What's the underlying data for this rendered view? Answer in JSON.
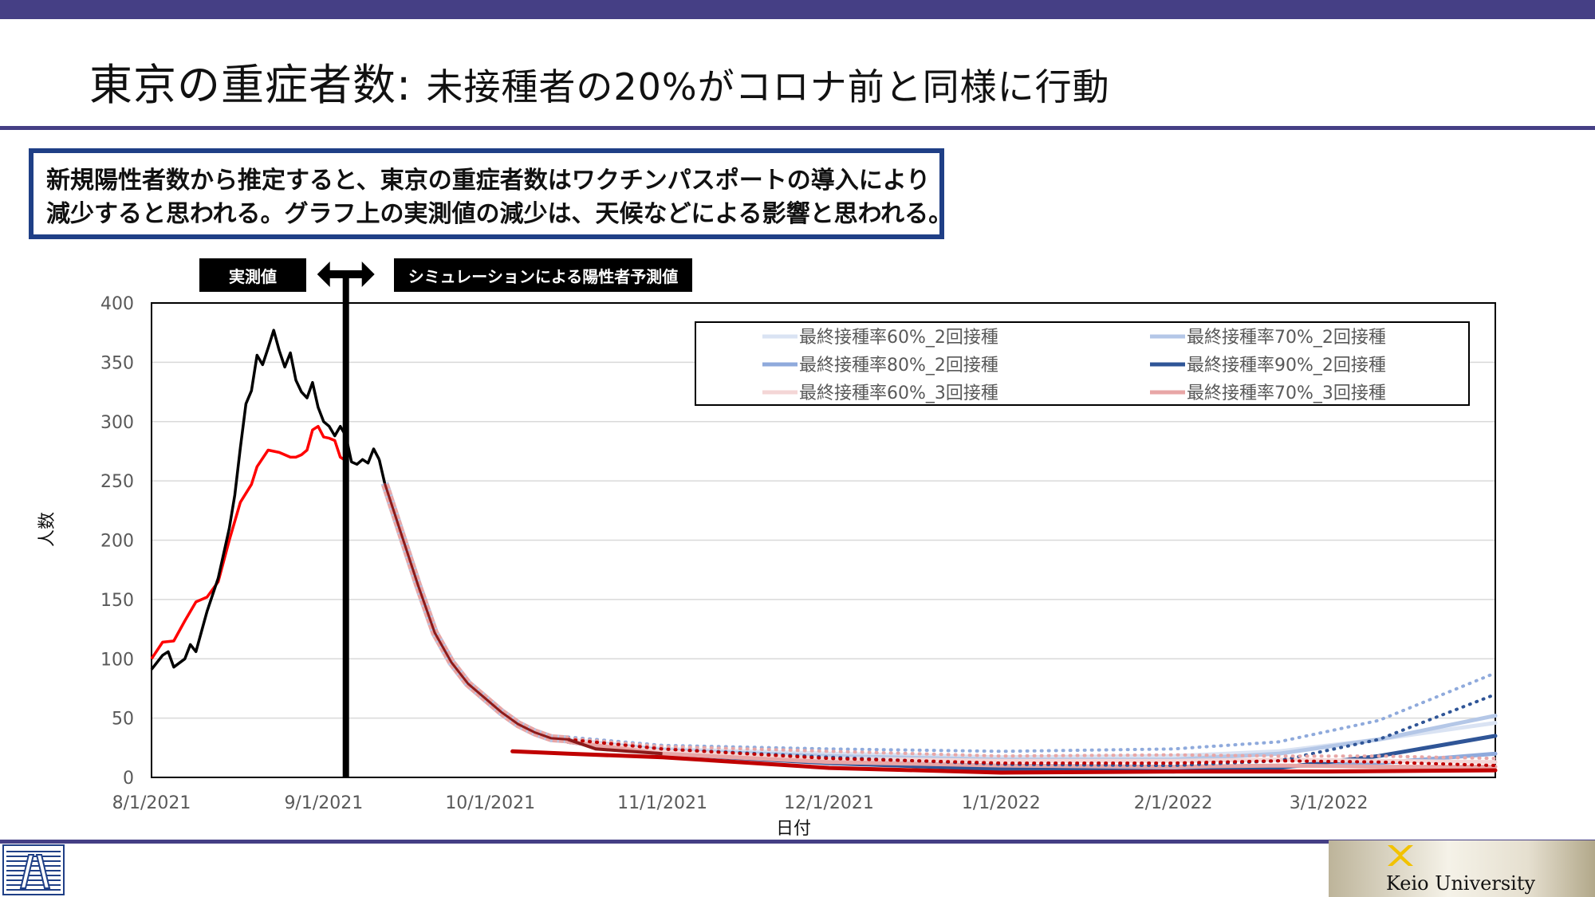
{
  "slide": {
    "title_main": "東京の重症者数: ",
    "title_sub": "未接種者の20%がコロナ前と同様に行動",
    "callout_line1": "新規陽性者数から推定すると、東京の重症者数はワクチンパスポートの導入により",
    "callout_line2": "減少すると思われる。グラフ上の実測値の減少は、天候などによる影響と思われる。",
    "tag_actual": "実測値",
    "tag_sim": "シミュレーションによる陽性者予測値",
    "footer_brand": "Keio University"
  },
  "colors": {
    "accent_bar": "#453f85",
    "callout_border": "#1f3f86",
    "actual": "#000000",
    "seven_day_avg": "#ff0000",
    "dark_red": "#8b1a1a"
  },
  "chart_data": {
    "type": "line",
    "xlabel": "日付",
    "ylabel": "人数",
    "ylim": [
      0,
      400
    ],
    "yticks": [
      0,
      50,
      100,
      150,
      200,
      250,
      300,
      350,
      400
    ],
    "xlim": [
      "2021-08-01",
      "2022-03-31"
    ],
    "xticks": [
      "8/1/2021",
      "9/1/2021",
      "10/1/2021",
      "11/1/2021",
      "12/1/2021",
      "1/1/2022",
      "2/1/2022",
      "3/1/2022"
    ],
    "xtick_dates": [
      "2021-08-01",
      "2021-09-01",
      "2021-10-01",
      "2021-11-01",
      "2021-12-01",
      "2022-01-01",
      "2022-02-01",
      "2022-03-01"
    ],
    "grid": true,
    "legend_position": "top-right",
    "divider_date": "2021-09-05",
    "actual_black": {
      "dates": [
        "2021-08-01",
        "2021-08-03",
        "2021-08-04",
        "2021-08-05",
        "2021-08-07",
        "2021-08-08",
        "2021-08-09",
        "2021-08-11",
        "2021-08-13",
        "2021-08-15",
        "2021-08-16",
        "2021-08-17",
        "2021-08-18",
        "2021-08-19",
        "2021-08-20",
        "2021-08-21",
        "2021-08-22",
        "2021-08-23",
        "2021-08-24",
        "2021-08-25",
        "2021-08-26",
        "2021-08-27",
        "2021-08-28",
        "2021-08-29",
        "2021-08-30",
        "2021-08-31",
        "2021-09-01",
        "2021-09-02",
        "2021-09-03",
        "2021-09-04",
        "2021-09-05",
        "2021-09-06",
        "2021-09-07",
        "2021-09-08",
        "2021-09-09",
        "2021-09-10",
        "2021-09-11"
      ],
      "values": [
        91,
        103,
        106,
        93,
        100,
        112,
        106,
        140,
        168,
        210,
        238,
        278,
        315,
        326,
        356,
        348,
        362,
        377,
        360,
        346,
        358,
        335,
        325,
        320,
        333,
        312,
        300,
        296,
        288,
        296,
        288,
        266,
        264,
        268,
        265,
        277,
        268
      ]
    },
    "seven_day_avg_red": {
      "dates": [
        "2021-08-01",
        "2021-08-03",
        "2021-08-05",
        "2021-08-07",
        "2021-08-09",
        "2021-08-11",
        "2021-08-13",
        "2021-08-15",
        "2021-08-17",
        "2021-08-19",
        "2021-08-20",
        "2021-08-22",
        "2021-08-24",
        "2021-08-26",
        "2021-08-27",
        "2021-08-28",
        "2021-08-29",
        "2021-08-30",
        "2021-08-31",
        "2021-09-01",
        "2021-09-02",
        "2021-09-03",
        "2021-09-04",
        "2021-09-05"
      ],
      "values": [
        100,
        114,
        115,
        132,
        148,
        152,
        165,
        200,
        232,
        247,
        262,
        276,
        274,
        270,
        270,
        272,
        276,
        293,
        296,
        287,
        286,
        284,
        270,
        267
      ]
    },
    "simulation_common_decline": {
      "dates": [
        "2021-09-12",
        "2021-09-15",
        "2021-09-18",
        "2021-09-21",
        "2021-09-24",
        "2021-09-27",
        "2021-09-30",
        "2021-10-03",
        "2021-10-06",
        "2021-10-09",
        "2021-10-12",
        "2021-10-15"
      ],
      "values": [
        248,
        205,
        162,
        122,
        97,
        79,
        67,
        55,
        45,
        38,
        33,
        32
      ]
    },
    "series": [
      {
        "name": "最終接種率60%_2回接種",
        "color": "#dae3f3",
        "dash": "solid",
        "dates": [
          "2021-10-15",
          "2021-11-01",
          "2021-12-01",
          "2022-01-01",
          "2022-02-01",
          "2022-02-20",
          "2022-03-10",
          "2022-03-31"
        ],
        "values": [
          32,
          24,
          20,
          17,
          18,
          22,
          32,
          46
        ]
      },
      {
        "name": "最終接種率70%_2回接種",
        "color": "#b4c7e7",
        "dash": "solid",
        "dates": [
          "2021-10-15",
          "2021-11-01",
          "2021-12-01",
          "2022-01-01",
          "2022-02-01",
          "2022-02-20",
          "2022-03-10",
          "2022-03-31"
        ],
        "values": [
          31,
          23,
          18,
          15,
          15,
          20,
          32,
          52
        ]
      },
      {
        "name": "最終接種率80%_2回接種",
        "color": "#8faadc",
        "dash": "solid",
        "dates": [
          "2021-10-15",
          "2021-11-01",
          "2021-12-01",
          "2022-01-01",
          "2022-02-01",
          "2022-02-20",
          "2022-03-10",
          "2022-03-31"
        ],
        "values": [
          30,
          21,
          14,
          9,
          8,
          9,
          12,
          20
        ]
      },
      {
        "name": "最終接種率90%_2回接種",
        "color": "#2f5597",
        "dash": "solid",
        "dates": [
          "2021-10-15",
          "2021-11-01",
          "2021-12-01",
          "2022-01-01",
          "2022-02-01",
          "2022-02-20",
          "2022-03-10",
          "2022-03-31"
        ],
        "values": [
          30,
          20,
          12,
          7,
          5,
          8,
          18,
          35
        ]
      },
      {
        "name": "最終接種率60%_3回接種",
        "color": "#f4d6d6",
        "dash": "solid",
        "dates": [
          "2021-10-15",
          "2021-11-01",
          "2021-12-01",
          "2022-01-01",
          "2022-02-01",
          "2022-02-20",
          "2022-03-10",
          "2022-03-31"
        ],
        "values": [
          31,
          22,
          16,
          14,
          14,
          15,
          14,
          13
        ]
      },
      {
        "name": "最終接種率70%_3回接種",
        "color": "#e8a6a6",
        "dash": "solid",
        "dates": [
          "2021-10-15",
          "2021-11-01",
          "2021-12-01",
          "2022-01-01",
          "2022-02-01",
          "2022-02-20",
          "2022-03-10",
          "2022-03-31"
        ],
        "values": [
          30,
          20,
          13,
          10,
          9,
          10,
          9,
          9
        ]
      },
      {
        "series_color": "#c00000",
        "dash": "solid",
        "dates": [
          "2021-10-05",
          "2021-10-15",
          "2021-11-01",
          "2021-12-01",
          "2022-01-01",
          "2022-02-01",
          "2022-03-01",
          "2022-03-31"
        ],
        "values": [
          22,
          20,
          17,
          8,
          4,
          5,
          5,
          6
        ]
      },
      {
        "color": "#8faadc",
        "dash": "dotted",
        "dates": [
          "2021-10-15",
          "2021-11-01",
          "2021-12-01",
          "2022-01-01",
          "2022-02-01",
          "2022-02-20",
          "2022-03-10",
          "2022-03-31"
        ],
        "values": [
          34,
          27,
          24,
          22,
          24,
          30,
          48,
          88
        ]
      },
      {
        "color": "#2f5597",
        "dash": "dotted",
        "dates": [
          "2021-10-15",
          "2021-11-01",
          "2021-12-01",
          "2022-01-01",
          "2022-02-01",
          "2022-02-20",
          "2022-03-10",
          "2022-03-31"
        ],
        "values": [
          33,
          24,
          17,
          11,
          10,
          14,
          32,
          70
        ]
      },
      {
        "color": "#e8a6a6",
        "dash": "dotted",
        "dates": [
          "2021-10-15",
          "2021-11-01",
          "2021-12-01",
          "2022-01-01",
          "2022-02-01",
          "2022-02-20",
          "2022-03-10",
          "2022-03-31"
        ],
        "values": [
          33,
          26,
          22,
          18,
          19,
          18,
          18,
          16
        ]
      },
      {
        "color": "#c00000",
        "dash": "dotted",
        "dates": [
          "2021-10-15",
          "2021-11-01",
          "2021-12-01",
          "2022-01-01",
          "2022-02-01",
          "2022-02-20",
          "2022-03-10",
          "2022-03-31"
        ],
        "values": [
          32,
          24,
          16,
          12,
          12,
          14,
          13,
          10
        ]
      }
    ]
  }
}
